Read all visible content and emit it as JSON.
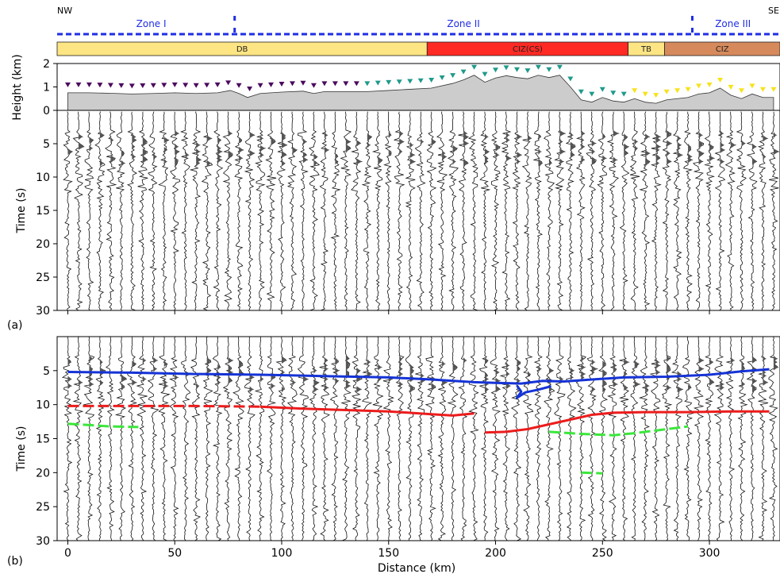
{
  "header": {
    "corner_left": "NW",
    "corner_right": "SE",
    "zones": [
      {
        "label": "Zone I",
        "from_km": 0,
        "to_km": 78
      },
      {
        "label": "Zone II",
        "from_km": 78,
        "to_km": 292
      },
      {
        "label": "Zone III",
        "from_km": 292,
        "to_km": 330
      }
    ],
    "zone_color": "#1f2ee6"
  },
  "terranes": [
    {
      "label": "DB",
      "from_km": -5,
      "to_km": 168,
      "color": "#fde584"
    },
    {
      "label": "CIZ(CS)",
      "from_km": 168,
      "to_km": 262,
      "color": "#ff2a24"
    },
    {
      "label": "TB",
      "from_km": 262,
      "to_km": 279,
      "color": "#fde584"
    },
    {
      "label": "CIZ",
      "from_km": 279,
      "to_km": 333,
      "color": "#d68a5c"
    }
  ],
  "panel_labels": {
    "a": "(a)",
    "b": "(b)"
  },
  "chart_data": [
    {
      "type": "area",
      "panel": "topography",
      "ylabel": "Height (km)",
      "ylim": [
        0,
        2
      ],
      "yticks": [
        "0",
        "1",
        "2"
      ],
      "xlim": [
        -5,
        333
      ],
      "x": [
        0,
        10,
        20,
        30,
        40,
        50,
        60,
        70,
        76,
        80,
        84,
        90,
        100,
        110,
        115,
        120,
        130,
        140,
        150,
        160,
        170,
        180,
        185,
        190,
        195,
        200,
        205,
        210,
        215,
        220,
        225,
        230,
        235,
        240,
        245,
        250,
        255,
        260,
        265,
        270,
        275,
        280,
        290,
        295,
        300,
        305,
        310,
        315,
        320,
        325,
        330
      ],
      "y": [
        0.75,
        0.75,
        0.73,
        0.7,
        0.72,
        0.75,
        0.72,
        0.75,
        0.85,
        0.72,
        0.55,
        0.72,
        0.78,
        0.82,
        0.72,
        0.8,
        0.8,
        0.8,
        0.85,
        0.9,
        0.95,
        1.15,
        1.3,
        1.5,
        1.2,
        1.38,
        1.48,
        1.4,
        1.35,
        1.5,
        1.4,
        1.5,
        1.0,
        0.45,
        0.35,
        0.55,
        0.4,
        0.35,
        0.5,
        0.35,
        0.3,
        0.45,
        0.55,
        0.7,
        0.75,
        0.95,
        0.65,
        0.5,
        0.7,
        0.55,
        0.55
      ],
      "fill": "#cccccc",
      "stations": [
        {
          "from_km": 0,
          "to_km": 140,
          "color": "#4b0a5e"
        },
        {
          "from_km": 140,
          "to_km": 262,
          "color": "#1f9a8a"
        },
        {
          "from_km": 262,
          "to_km": 330,
          "color": "#f7e21a"
        }
      ]
    },
    {
      "type": "line",
      "panel": "a",
      "ylabel": "Time (s)",
      "ylim": [
        30,
        0
      ],
      "yticks": [
        "5",
        "10",
        "15",
        "20",
        "25",
        "30"
      ],
      "xlim": [
        -5,
        333
      ],
      "series": []
    },
    {
      "type": "line",
      "panel": "b",
      "ylabel": "Time (s)",
      "xlabel": "Distance (km)",
      "ylim": [
        30,
        0
      ],
      "yticks": [
        "5",
        "10",
        "15",
        "20",
        "25",
        "30"
      ],
      "xticks": [
        "0",
        "50",
        "100",
        "150",
        "200",
        "250",
        "300"
      ],
      "xlim": [
        -5,
        333
      ],
      "series": [
        {
          "color": "#1533d6",
          "x": [
            0,
            30,
            60,
            90,
            120,
            150,
            170,
            190,
            200,
            212,
            222,
            232,
            245,
            260,
            280,
            300,
            315,
            328
          ],
          "y": [
            5.2,
            5.3,
            5.5,
            5.6,
            5.8,
            6.0,
            6.3,
            6.7,
            6.8,
            6.9,
            6.5,
            6.6,
            6.3,
            6.0,
            5.9,
            5.6,
            5.1,
            4.8
          ]
        },
        {
          "color": "#1533d6",
          "x": [
            210,
            212,
            210,
            214,
            220,
            226
          ],
          "y": [
            7.2,
            8.1,
            9.0,
            8.2,
            7.8,
            7.3
          ]
        },
        {
          "color": "#ec1c1c",
          "dash": true,
          "x": [
            0,
            30,
            60,
            90
          ],
          "y": [
            10.2,
            10.2,
            10.2,
            10.3
          ]
        },
        {
          "color": "#ec1c1c",
          "x": [
            90,
            110,
            130,
            150,
            170,
            180,
            190
          ],
          "y": [
            10.3,
            10.6,
            10.8,
            11.0,
            11.4,
            11.6,
            11.3
          ]
        },
        {
          "color": "#ec1c1c",
          "x": [
            195,
            205,
            215,
            225,
            235,
            245,
            255,
            270,
            290,
            310,
            328
          ],
          "y": [
            14.1,
            14.0,
            13.6,
            12.9,
            12.2,
            11.5,
            11.2,
            11.1,
            11.1,
            11.0,
            11.0
          ]
        },
        {
          "color": "#3ce63c",
          "dash": true,
          "x": [
            0,
            10,
            20,
            33
          ],
          "y": [
            12.8,
            13.0,
            13.2,
            13.3
          ]
        },
        {
          "color": "#3ce63c",
          "dash": true,
          "x": [
            225,
            240,
            255,
            265,
            275,
            290
          ],
          "y": [
            14.0,
            14.3,
            14.5,
            14.2,
            13.8,
            13.2
          ]
        },
        {
          "color": "#3ce63c",
          "dash": true,
          "x": [
            240,
            250
          ],
          "y": [
            20.0,
            20.1
          ]
        }
      ]
    }
  ]
}
